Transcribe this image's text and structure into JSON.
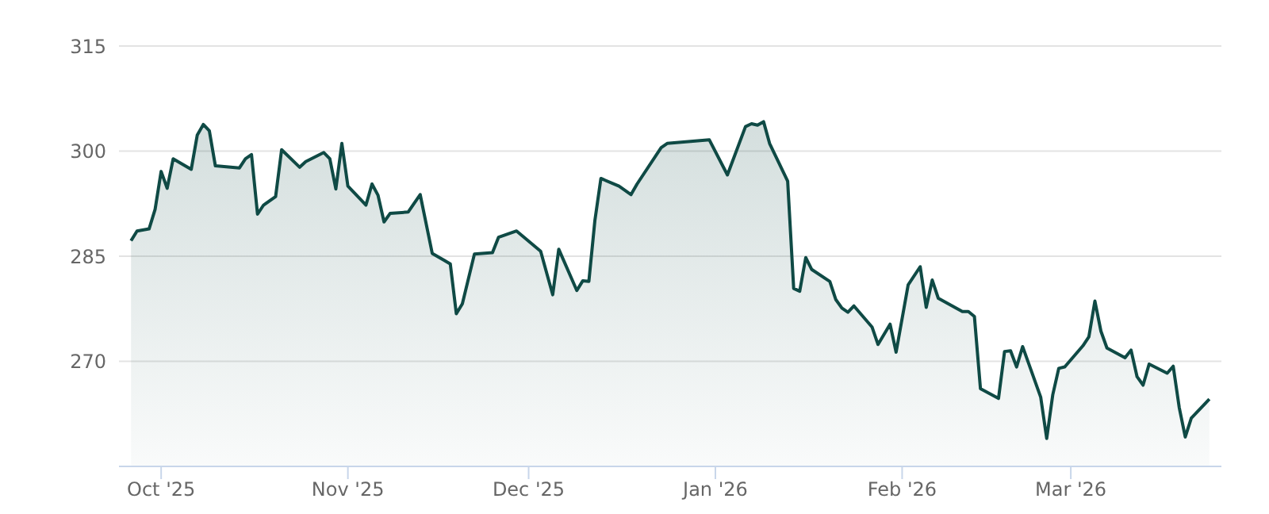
{
  "chart_data": {
    "type": "area",
    "x": [
      "2025-09-26",
      "2025-09-27",
      "2025-09-29",
      "2025-09-30",
      "2025-10-01",
      "2025-10-02",
      "2025-10-03",
      "2025-10-06",
      "2025-10-07",
      "2025-10-08",
      "2025-10-09",
      "2025-10-10",
      "2025-10-14",
      "2025-10-15",
      "2025-10-16",
      "2025-10-17",
      "2025-10-18",
      "2025-10-20",
      "2025-10-21",
      "2025-10-24",
      "2025-10-25",
      "2025-10-28",
      "2025-10-29",
      "2025-10-30",
      "2025-10-31",
      "2025-11-01",
      "2025-11-04",
      "2025-11-05",
      "2025-11-06",
      "2025-11-07",
      "2025-11-08",
      "2025-11-11",
      "2025-11-13",
      "2025-11-15",
      "2025-11-17",
      "2025-11-18",
      "2025-11-19",
      "2025-11-20",
      "2025-11-22",
      "2025-11-25",
      "2025-11-26",
      "2025-11-29",
      "2025-12-03",
      "2025-12-04",
      "2025-12-05",
      "2025-12-06",
      "2025-12-09",
      "2025-12-10",
      "2025-12-11",
      "2025-12-12",
      "2025-12-13",
      "2025-12-16",
      "2025-12-18",
      "2025-12-19",
      "2025-12-23",
      "2025-12-24",
      "2025-12-31",
      "2026-01-03",
      "2026-01-06",
      "2026-01-07",
      "2026-01-08",
      "2026-01-09",
      "2026-01-10",
      "2026-01-13",
      "2026-01-14",
      "2026-01-15",
      "2026-01-16",
      "2026-01-17",
      "2026-01-20",
      "2026-01-21",
      "2026-01-22",
      "2026-01-23",
      "2026-01-24",
      "2026-01-27",
      "2026-01-28",
      "2026-01-30",
      "2026-01-31",
      "2026-02-02",
      "2026-02-04",
      "2026-02-05",
      "2026-02-06",
      "2026-02-07",
      "2026-02-11",
      "2026-02-12",
      "2026-02-13",
      "2026-02-14",
      "2026-02-17",
      "2026-02-18",
      "2026-02-19",
      "2026-02-20",
      "2026-02-21",
      "2026-02-24",
      "2026-02-25",
      "2026-02-26",
      "2026-02-27",
      "2026-02-28",
      "2026-03-03",
      "2026-03-04",
      "2026-03-05",
      "2026-03-06",
      "2026-03-07",
      "2026-03-10",
      "2026-03-11",
      "2026-03-12",
      "2026-03-13",
      "2026-03-14",
      "2026-03-17",
      "2026-03-18",
      "2026-03-19",
      "2026-03-20",
      "2026-03-21",
      "2026-03-24"
    ],
    "series": [
      {
        "color": "#0f4a45",
        "values": [
          287.2,
          288.6,
          288.9,
          291.7,
          297.1,
          294.7,
          298.9,
          297.4,
          302.3,
          303.8,
          302.9,
          297.9,
          297.6,
          298.9,
          299.5,
          291.0,
          292.3,
          293.5,
          300.2,
          297.7,
          298.5,
          299.8,
          298.9,
          294.6,
          301.1,
          295.0,
          292.3,
          295.3,
          293.7,
          289.9,
          291.1,
          291.3,
          293.8,
          285.4,
          284.4,
          283.9,
          276.8,
          278.2,
          285.3,
          285.5,
          287.7,
          288.6,
          285.7,
          282.6,
          279.5,
          286.0,
          280.1,
          281.5,
          281.4,
          290.1,
          296.1,
          295.0,
          293.8,
          295.3,
          300.5,
          301.1,
          301.6,
          296.6,
          303.5,
          303.9,
          303.7,
          304.2,
          301.1,
          295.7,
          280.4,
          280.0,
          284.8,
          283.1,
          281.4,
          278.8,
          277.6,
          277.0,
          277.9,
          274.9,
          272.4,
          275.3,
          271.3,
          280.9,
          283.5,
          277.7,
          281.6,
          279.0,
          277.1,
          277.1,
          276.4,
          266.1,
          264.7,
          271.4,
          271.5,
          269.2,
          272.1,
          264.9,
          259.0,
          265.2,
          269.0,
          269.2,
          272.2,
          273.5,
          278.6,
          274.3,
          271.9,
          270.5,
          271.6,
          267.8,
          266.6,
          269.6,
          268.3,
          269.3,
          263.4,
          259.2,
          261.9,
          264.6
        ]
      }
    ],
    "xlim": [
      "2025-09-24",
      "2026-03-26"
    ],
    "xticks": [
      {
        "value": "2025-10-01",
        "label": "Oct '25"
      },
      {
        "value": "2025-11-01",
        "label": "Nov '25"
      },
      {
        "value": "2025-12-01",
        "label": "Dec '25"
      },
      {
        "value": "2026-01-01",
        "label": "Jan '26"
      },
      {
        "value": "2026-02-01",
        "label": "Feb '26"
      },
      {
        "value": "2026-03-01",
        "label": "Mar '26"
      }
    ],
    "ylim": [
      255,
      315
    ],
    "yticks": [
      270,
      285,
      300,
      315
    ],
    "grid": "y",
    "legend": false
  }
}
